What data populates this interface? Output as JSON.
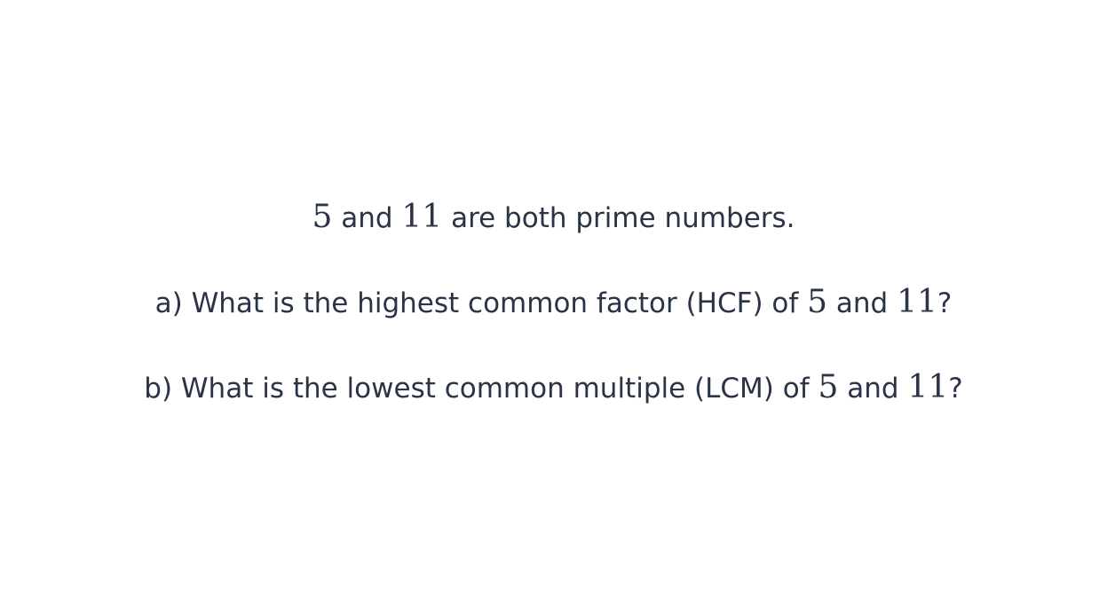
{
  "intro": {
    "num_a": "5",
    "connector": " and ",
    "num_b": "11",
    "suffix": " are both prime numbers."
  },
  "question_a": {
    "prefix": "a) What is the highest common factor (HCF) of ",
    "num_a": "5",
    "connector": " and ",
    "num_b": "11",
    "suffix": "?"
  },
  "question_b": {
    "prefix": "b) What is the lowest common multiple (LCM) of ",
    "num_a": "5",
    "connector": " and ",
    "num_b": "11",
    "suffix": "?"
  }
}
